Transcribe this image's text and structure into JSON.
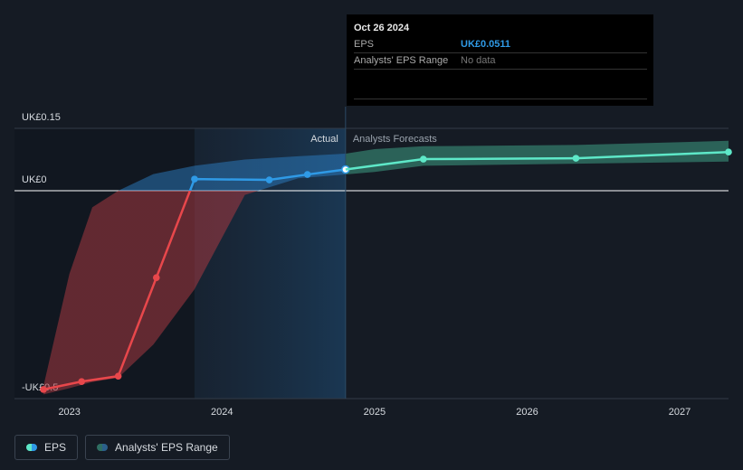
{
  "chart_data": {
    "type": "line",
    "x": [
      2022.83,
      2023.08,
      2023.32,
      2023.57,
      2023.82,
      2024.31,
      2024.56,
      2024.81
    ],
    "series": [
      {
        "name": "EPS",
        "color": "#2f9ae6",
        "negative_color": "#e8474b",
        "x": [
          2022.83,
          2023.08,
          2023.32,
          2023.57,
          2023.82,
          2024.31,
          2024.56,
          2024.81
        ],
        "values": [
          -0.478,
          -0.459,
          -0.446,
          -0.209,
          0.028,
          0.026,
          0.039,
          0.0511
        ]
      },
      {
        "color": "#5ee8c8",
        "x": [
          2024.81,
          2025.32,
          2026.32,
          2027.32
        ],
        "values": [
          0.0511,
          0.076,
          0.078,
          0.093
        ]
      }
    ],
    "range": {
      "name": "Analysts' EPS Range",
      "color": "#2b7bbf",
      "negative_color": "#b03a42",
      "forecast_color": "#2f6e62",
      "x": [
        2022.83,
        2023.0,
        2023.15,
        2023.32,
        2023.55,
        2023.82,
        2024.15,
        2024.5,
        2024.81,
        2025.0,
        2025.32,
        2026.32,
        2027.32
      ],
      "low": [
        -0.49,
        -0.475,
        -0.46,
        -0.45,
        -0.37,
        -0.237,
        -0.01,
        0.03,
        0.039,
        0.045,
        0.06,
        0.065,
        0.07
      ],
      "high": [
        -0.47,
        -0.2,
        -0.04,
        0.0,
        0.04,
        0.06,
        0.075,
        0.083,
        0.089,
        0.1,
        0.107,
        0.11,
        0.12
      ]
    },
    "xlim": [
      2022.64,
      2027.32
    ],
    "xticks": [
      2023,
      2024,
      2025,
      2026,
      2027
    ],
    "ylim": [
      -0.5,
      0.15
    ],
    "yticks": [
      {
        "value": -0.5,
        "label": "-UK£0.5"
      },
      {
        "value": 0,
        "label": "UK£0"
      },
      {
        "value": 0.15,
        "label": "UK£0.15"
      }
    ],
    "highlight_xlim": [
      2023.82,
      2024.81
    ],
    "actual_label": "Actual",
    "forecast_label": "Analysts Forecasts",
    "tooltip": {
      "date": "Oct 26 2024",
      "rows": [
        {
          "label": "EPS",
          "value": "UK£0.0511"
        },
        {
          "label": "Analysts' EPS Range",
          "value": "No data"
        }
      ]
    },
    "legend": [
      "EPS",
      "Analysts' EPS Range"
    ]
  }
}
